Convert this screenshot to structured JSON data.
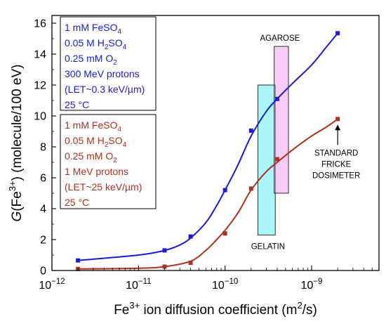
{
  "chart_data": {
    "type": "scatter",
    "xlabel": "Fe3+ ion diffusion coefficient (m2/s)",
    "ylabel": "G(Fe3+) (molecule/100 eV)",
    "xscale": "log",
    "xlim": [
      1e-12,
      6e-09
    ],
    "ylim": [
      0,
      16.5
    ],
    "x_ticks": [
      1e-12,
      1e-11,
      1e-10,
      1e-09
    ],
    "x_tick_labels": [
      "10−12",
      "10−11",
      "10−10",
      "10−9"
    ],
    "y_ticks": [
      0,
      2,
      4,
      6,
      8,
      10,
      12,
      14,
      16
    ],
    "grid": false,
    "series": [
      {
        "color": "#1a1adb",
        "x": [
          2e-12,
          2e-11,
          4e-11,
          1e-10,
          2e-10,
          4e-10,
          2e-09
        ],
        "y": [
          0.65,
          1.3,
          2.2,
          5.2,
          9.05,
          11.1,
          15.35
        ],
        "fit": [
          [
            2e-12,
            0.65
          ],
          [
            1e-11,
            1.0
          ],
          [
            2e-11,
            1.3
          ],
          [
            3e-11,
            1.65
          ],
          [
            4e-11,
            2.1
          ],
          [
            6e-11,
            3.1
          ],
          [
            8e-11,
            4.2
          ],
          [
            1e-10,
            5.2
          ],
          [
            1.4e-10,
            6.8
          ],
          [
            2e-10,
            8.7
          ],
          [
            3e-10,
            10.3
          ],
          [
            4e-10,
            11.1
          ],
          [
            6e-10,
            12.1
          ],
          [
            1e-09,
            13.3
          ],
          [
            1.5e-09,
            14.5
          ],
          [
            2e-09,
            15.35
          ]
        ]
      },
      {
        "color": "#b03020",
        "x": [
          2e-12,
          2e-11,
          4e-11,
          1e-10,
          2e-10,
          4e-10,
          2e-09
        ],
        "y": [
          0.1,
          0.25,
          0.5,
          2.4,
          5.3,
          7.2,
          9.8
        ],
        "fit": [
          [
            2e-12,
            0.1
          ],
          [
            1e-11,
            0.15
          ],
          [
            2e-11,
            0.25
          ],
          [
            4e-11,
            0.6
          ],
          [
            6e-11,
            1.3
          ],
          [
            8e-11,
            2.0
          ],
          [
            1e-10,
            2.6
          ],
          [
            1.4e-10,
            3.7
          ],
          [
            2e-10,
            5.2
          ],
          [
            3e-10,
            6.4
          ],
          [
            4e-10,
            7.0
          ],
          [
            6e-10,
            7.8
          ],
          [
            1e-09,
            8.7
          ],
          [
            1.5e-09,
            9.3
          ],
          [
            2e-09,
            9.8
          ]
        ]
      }
    ],
    "regions": [
      {
        "label": "GELATIN",
        "x": [
          2.4e-10,
          3.8e-10
        ],
        "y": [
          2.3,
          12.0
        ],
        "color": "#40e8ee"
      },
      {
        "label": "AGAROSE",
        "x": [
          3.7e-10,
          5.4e-10
        ],
        "y": [
          5.0,
          14.5
        ],
        "color": "#ee90ee"
      }
    ],
    "legend_boxes": [
      {
        "color": "#1a1adb",
        "lines": [
          [
            "1 mM FeSO",
            "4",
            ""
          ],
          [
            "0.05 M H",
            "2",
            "SO4"
          ],
          [
            "0.25 mM O",
            "2",
            ""
          ],
          [
            "300 MeV protons",
            "",
            ""
          ],
          [
            "(LET~0.3 keV/µm)",
            "",
            ""
          ],
          [
            "25 °C",
            "",
            ""
          ]
        ]
      },
      {
        "color": "#b03020",
        "lines": [
          [
            "1 mM FeSO",
            "4",
            ""
          ],
          [
            "0.05 M H",
            "2",
            "SO4"
          ],
          [
            "0.25 mM O",
            "2",
            ""
          ],
          [
            "1 MeV protons",
            "",
            ""
          ],
          [
            "(LET~25 keV/µm)",
            "",
            ""
          ],
          [
            "25 °C",
            "",
            ""
          ]
        ]
      }
    ],
    "annotations": [
      {
        "text_lines": [
          "STANDARD",
          "FRICKE",
          "DOSIMETER"
        ],
        "x": 2e-09,
        "y": 9.8,
        "arrow": true
      }
    ]
  }
}
